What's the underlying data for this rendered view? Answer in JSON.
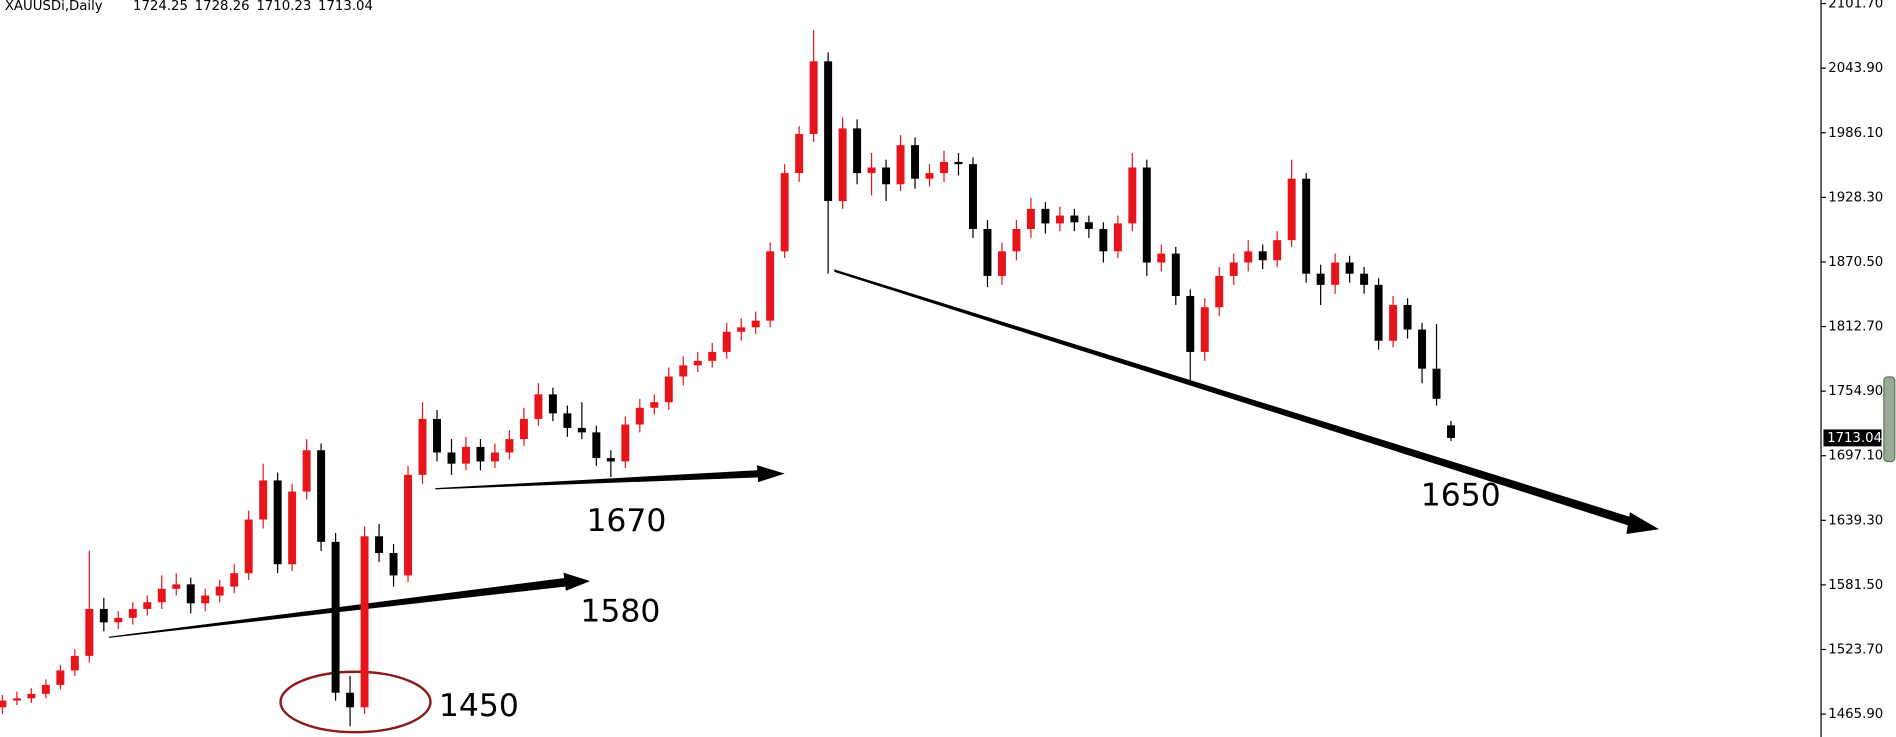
{
  "chart_data": {
    "type": "candlestick",
    "symbol": "XAUUSDi,Daily",
    "up_color": "#e8141c",
    "down_color": "#000000",
    "ylim": [
      1445.4,
      2104.9
    ],
    "yticks": [
      {
        "value": 2101.7,
        "label": "2101.70"
      },
      {
        "value": 2043.9,
        "label": "2043.90"
      },
      {
        "value": 1986.1,
        "label": "1986.10"
      },
      {
        "value": 1928.3,
        "label": "1928.30"
      },
      {
        "value": 1870.5,
        "label": "1870.50"
      },
      {
        "value": 1812.7,
        "label": "1812.70"
      },
      {
        "value": 1754.9,
        "label": "1754.90"
      },
      {
        "value": 1697.1,
        "label": "1697.10"
      },
      {
        "value": 1639.3,
        "label": "1639.30"
      },
      {
        "value": 1581.5,
        "label": "1581.50"
      },
      {
        "value": 1523.7,
        "label": "1523.70"
      },
      {
        "value": 1465.9,
        "label": "1465.90"
      }
    ],
    "annotations": [
      "1670",
      "1580",
      "1450",
      "1650"
    ],
    "candles": [
      [
        1472,
        1483,
        1466,
        1478
      ],
      [
        1478,
        1486,
        1474,
        1480
      ],
      [
        1480,
        1489,
        1476,
        1484
      ],
      [
        1484,
        1497,
        1480,
        1492
      ],
      [
        1492,
        1510,
        1488,
        1505
      ],
      [
        1505,
        1524,
        1500,
        1518
      ],
      [
        1518,
        1612,
        1512,
        1560
      ],
      [
        1560,
        1570,
        1540,
        1548
      ],
      [
        1548,
        1558,
        1542,
        1552
      ],
      [
        1552,
        1566,
        1546,
        1560
      ],
      [
        1560,
        1572,
        1554,
        1566
      ],
      [
        1566,
        1590,
        1560,
        1578
      ],
      [
        1578,
        1592,
        1572,
        1582
      ],
      [
        1582,
        1588,
        1556,
        1565
      ],
      [
        1565,
        1578,
        1558,
        1572
      ],
      [
        1572,
        1586,
        1566,
        1580
      ],
      [
        1580,
        1600,
        1574,
        1592
      ],
      [
        1592,
        1648,
        1586,
        1640
      ],
      [
        1640,
        1690,
        1632,
        1675
      ],
      [
        1675,
        1682,
        1592,
        1600
      ],
      [
        1600,
        1672,
        1594,
        1665
      ],
      [
        1665,
        1712,
        1658,
        1702
      ],
      [
        1702,
        1708,
        1612,
        1620
      ],
      [
        1620,
        1628,
        1478,
        1485
      ],
      [
        1485,
        1500,
        1455,
        1472
      ],
      [
        1472,
        1634,
        1466,
        1625
      ],
      [
        1625,
        1636,
        1602,
        1610
      ],
      [
        1610,
        1618,
        1580,
        1590
      ],
      [
        1590,
        1688,
        1584,
        1680
      ],
      [
        1680,
        1745,
        1672,
        1730
      ],
      [
        1730,
        1738,
        1692,
        1700
      ],
      [
        1700,
        1712,
        1680,
        1690
      ],
      [
        1690,
        1714,
        1684,
        1705
      ],
      [
        1705,
        1712,
        1684,
        1692
      ],
      [
        1692,
        1708,
        1686,
        1700
      ],
      [
        1700,
        1720,
        1694,
        1712
      ],
      [
        1712,
        1740,
        1706,
        1730
      ],
      [
        1730,
        1762,
        1724,
        1752
      ],
      [
        1752,
        1758,
        1728,
        1735
      ],
      [
        1735,
        1742,
        1714,
        1722
      ],
      [
        1722,
        1745,
        1712,
        1718
      ],
      [
        1718,
        1724,
        1688,
        1695
      ],
      [
        1695,
        1702,
        1678,
        1692
      ],
      [
        1692,
        1732,
        1686,
        1725
      ],
      [
        1725,
        1748,
        1718,
        1740
      ],
      [
        1740,
        1752,
        1734,
        1745
      ],
      [
        1745,
        1776,
        1738,
        1768
      ],
      [
        1768,
        1786,
        1760,
        1778
      ],
      [
        1778,
        1790,
        1772,
        1782
      ],
      [
        1782,
        1798,
        1776,
        1790
      ],
      [
        1790,
        1816,
        1784,
        1808
      ],
      [
        1808,
        1820,
        1800,
        1812
      ],
      [
        1812,
        1826,
        1806,
        1818
      ],
      [
        1818,
        1888,
        1812,
        1880
      ],
      [
        1880,
        1958,
        1874,
        1950
      ],
      [
        1950,
        1992,
        1942,
        1985
      ],
      [
        1985,
        2078,
        1978,
        2050
      ],
      [
        2050,
        2058,
        1860,
        1925
      ],
      [
        1925,
        2000,
        1918,
        1990
      ],
      [
        1990,
        1998,
        1940,
        1950
      ],
      [
        1950,
        1968,
        1930,
        1955
      ],
      [
        1955,
        1962,
        1925,
        1940
      ],
      [
        1940,
        1984,
        1934,
        1975
      ],
      [
        1975,
        1982,
        1936,
        1945
      ],
      [
        1945,
        1958,
        1938,
        1950
      ],
      [
        1950,
        1970,
        1942,
        1960
      ],
      [
        1960,
        1968,
        1948,
        1958
      ],
      [
        1958,
        1964,
        1892,
        1900
      ],
      [
        1900,
        1908,
        1848,
        1858
      ],
      [
        1858,
        1888,
        1850,
        1880
      ],
      [
        1880,
        1908,
        1872,
        1900
      ],
      [
        1900,
        1928,
        1892,
        1918
      ],
      [
        1918,
        1924,
        1896,
        1905
      ],
      [
        1905,
        1920,
        1898,
        1912
      ],
      [
        1912,
        1918,
        1898,
        1906
      ],
      [
        1906,
        1912,
        1892,
        1900
      ],
      [
        1900,
        1906,
        1870,
        1880
      ],
      [
        1880,
        1912,
        1874,
        1905
      ],
      [
        1905,
        1968,
        1898,
        1955
      ],
      [
        1955,
        1962,
        1858,
        1870
      ],
      [
        1870,
        1886,
        1862,
        1878
      ],
      [
        1878,
        1884,
        1832,
        1840
      ],
      [
        1840,
        1846,
        1760,
        1790
      ],
      [
        1790,
        1838,
        1782,
        1830
      ],
      [
        1830,
        1866,
        1822,
        1858
      ],
      [
        1858,
        1878,
        1850,
        1870
      ],
      [
        1870,
        1890,
        1862,
        1880
      ],
      [
        1880,
        1886,
        1864,
        1872
      ],
      [
        1872,
        1898,
        1866,
        1890
      ],
      [
        1890,
        1962,
        1884,
        1945
      ],
      [
        1945,
        1950,
        1852,
        1860
      ],
      [
        1860,
        1868,
        1832,
        1850
      ],
      [
        1850,
        1878,
        1842,
        1870
      ],
      [
        1870,
        1876,
        1852,
        1860
      ],
      [
        1860,
        1866,
        1842,
        1850
      ],
      [
        1850,
        1856,
        1792,
        1800
      ],
      [
        1800,
        1840,
        1794,
        1832
      ],
      [
        1832,
        1838,
        1802,
        1810
      ],
      [
        1810,
        1816,
        1762,
        1775
      ],
      [
        1775,
        1815,
        1742,
        1748
      ],
      [
        1724.25,
        1728.26,
        1710.23,
        1713.04
      ]
    ]
  }
}
